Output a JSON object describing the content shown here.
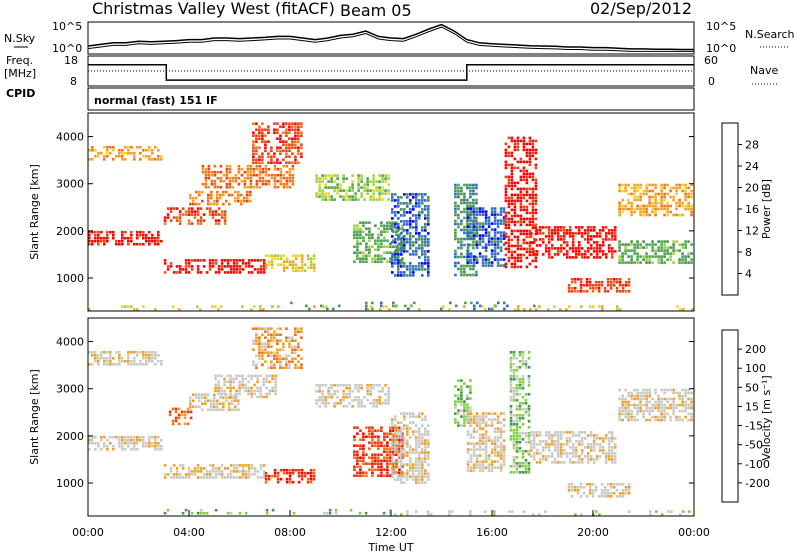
{
  "header": {
    "station": "Christmas Valley West (fitACF)",
    "beam": "Beam 05",
    "date": "02/Sep/2012"
  },
  "left_labels": {
    "nsky": "N.Sky",
    "freq": "Freq.",
    "freq_unit": "[MHz]",
    "cpid": "CPID"
  },
  "right_labels": {
    "nsearch": "N.Search",
    "nave": "Nave"
  },
  "cpid_text": "normal (fast) 151 IF",
  "colors": {
    "power": [
      "#0000ff",
      "#2a6ad0",
      "#4d8e55",
      "#47a84a",
      "#9fd23c",
      "#f0d225",
      "#f5a020",
      "#f07418",
      "#e84414",
      "#ff0000"
    ],
    "velocity": [
      "#ff0000",
      "#e8340e",
      "#f06d14",
      "#f0a020",
      "#c8c8c4",
      "#c8c8c4",
      "#7fcf3c",
      "#3e9c46",
      "#2a6ad0",
      "#1e3ea0"
    ],
    "ground": "#8a8a8a"
  },
  "chart_data": [
    {
      "type": "line",
      "name": "noise-panel",
      "ylabel_left": "N.Sky",
      "ylabel_right": "N.Search",
      "yticks_left": [
        "10^5",
        "10^0"
      ],
      "yticks_right": [
        "10^5",
        "10^0"
      ],
      "x_hours": [
        0,
        0.5,
        1,
        1.5,
        2,
        2.5,
        3,
        3.5,
        4,
        4.5,
        5,
        5.5,
        6,
        6.5,
        7,
        7.5,
        8,
        8.5,
        9,
        9.5,
        10,
        10.5,
        11,
        11.5,
        12,
        12.5,
        13,
        13.5,
        14,
        14.5,
        15,
        15.5,
        16,
        16.5,
        17,
        17.5,
        18,
        18.5,
        19,
        19.5,
        20,
        20.5,
        21,
        21.5,
        22,
        22.5,
        23,
        23.5,
        24
      ],
      "y_frac": [
        0.25,
        0.3,
        0.35,
        0.35,
        0.4,
        0.38,
        0.4,
        0.42,
        0.45,
        0.45,
        0.5,
        0.5,
        0.48,
        0.5,
        0.52,
        0.55,
        0.55,
        0.5,
        0.45,
        0.5,
        0.58,
        0.62,
        0.72,
        0.55,
        0.5,
        0.48,
        0.62,
        0.78,
        0.92,
        0.72,
        0.45,
        0.35,
        0.32,
        0.3,
        0.28,
        0.26,
        0.25,
        0.24,
        0.22,
        0.22,
        0.2,
        0.2,
        0.18,
        0.16,
        0.16,
        0.15,
        0.15,
        0.14,
        0.14
      ]
    },
    {
      "type": "line",
      "name": "frequency-panel",
      "ylabel_left": "Freq. [MHz]",
      "ylabel_right": "Nave",
      "yticks_left": [
        "18",
        "8"
      ],
      "yticks_right": [
        "60",
        "0"
      ],
      "segments_mhz": [
        {
          "x0": 0,
          "x1": 3.1,
          "y": 15.6
        },
        {
          "x0": 3.1,
          "x1": 15.0,
          "y": 9.2
        },
        {
          "x0": 15.0,
          "x1": 24,
          "y": 15.6
        }
      ],
      "nave_level": 30
    },
    {
      "type": "heatmap",
      "name": "power",
      "ylabel": "Slant Range [km]",
      "colorbar_label": "Power [dB]",
      "colorbar_ticks": [
        "28",
        "24",
        "20",
        "16",
        "12",
        "8",
        "4"
      ],
      "yticks": [
        "4000",
        "3000",
        "2000",
        "1000"
      ],
      "ylim": [
        300,
        4500
      ],
      "xlim": [
        0,
        24
      ],
      "bands": [
        {
          "x0": 0.0,
          "x1": 3.0,
          "r0": 1700,
          "r1": 2000,
          "level": 9
        },
        {
          "x0": 3.0,
          "x1": 7.0,
          "r0": 1100,
          "r1": 1400,
          "level": 9
        },
        {
          "x0": 3.0,
          "x1": 5.5,
          "r0": 2100,
          "r1": 2500,
          "level": 8
        },
        {
          "x0": 4.0,
          "x1": 6.5,
          "r0": 2550,
          "r1": 2850,
          "level": 7
        },
        {
          "x0": 0.0,
          "x1": 3.0,
          "r0": 3500,
          "r1": 3800,
          "level": 6
        },
        {
          "x0": 4.5,
          "x1": 8.2,
          "r0": 2900,
          "r1": 3400,
          "level": 7
        },
        {
          "x0": 6.5,
          "x1": 8.5,
          "r0": 3400,
          "r1": 4300,
          "level": 8
        },
        {
          "x0": 7.0,
          "x1": 9.0,
          "r0": 1100,
          "r1": 1500,
          "level": 5
        },
        {
          "x0": 9.0,
          "x1": 12.0,
          "r0": 2600,
          "r1": 3200,
          "level": 4
        },
        {
          "x0": 10.5,
          "x1": 12.5,
          "r0": 1300,
          "r1": 2200,
          "level": 3
        },
        {
          "x0": 12.0,
          "x1": 13.5,
          "r0": 1000,
          "r1": 2800,
          "level": 1
        },
        {
          "x0": 14.5,
          "x1": 15.5,
          "r0": 1000,
          "r1": 3000,
          "level": 2
        },
        {
          "x0": 15.0,
          "x1": 16.5,
          "r0": 1200,
          "r1": 2500,
          "level": 1
        },
        {
          "x0": 16.5,
          "x1": 17.8,
          "r0": 1200,
          "r1": 4000,
          "level": 9
        },
        {
          "x0": 17.5,
          "x1": 21.0,
          "r0": 1400,
          "r1": 2100,
          "level": 9
        },
        {
          "x0": 21.0,
          "x1": 24.0,
          "r0": 2300,
          "r1": 3000,
          "level": 6
        },
        {
          "x0": 21.0,
          "x1": 24.0,
          "r0": 1300,
          "r1": 1800,
          "level": 3
        },
        {
          "x0": 19.0,
          "x1": 21.5,
          "r0": 700,
          "r1": 1000,
          "level": 8
        }
      ],
      "ground_bands": [
        {
          "x0": 8.0,
          "x1": 18.0,
          "r0": 300,
          "r1": 500,
          "level": 2
        },
        {
          "x0": 0.0,
          "x1": 24.0,
          "r0": 300,
          "r1": 420,
          "level": 5
        }
      ]
    },
    {
      "type": "heatmap",
      "name": "velocity",
      "ylabel": "Slant Range [km]",
      "colorbar_label": "Velocity [m s⁻¹]",
      "colorbar_ticks": [
        "200",
        "100",
        "50",
        "15",
        "-15",
        "-50",
        "-100",
        "-200"
      ],
      "yticks": [
        "4000",
        "3000",
        "2000",
        "1000"
      ],
      "ylim": [
        300,
        4500
      ],
      "xlim": [
        0,
        24
      ],
      "xlabel": "Time UT",
      "xticks": [
        "00:00",
        "04:00",
        "08:00",
        "12:00",
        "16:00",
        "20:00",
        "00:00"
      ],
      "bands": [
        {
          "x0": 0.0,
          "x1": 3.0,
          "r0": 1700,
          "r1": 2000,
          "level": 4
        },
        {
          "x0": 3.0,
          "x1": 7.0,
          "r0": 1100,
          "r1": 1400,
          "level": 4
        },
        {
          "x0": 3.2,
          "x1": 4.2,
          "r0": 2200,
          "r1": 2600,
          "level": 2
        },
        {
          "x0": 4.0,
          "x1": 6.0,
          "r0": 2500,
          "r1": 2900,
          "level": 4
        },
        {
          "x0": 0.0,
          "x1": 3.0,
          "r0": 3500,
          "r1": 3800,
          "level": 4
        },
        {
          "x0": 5.0,
          "x1": 7.5,
          "r0": 2800,
          "r1": 3300,
          "level": 4
        },
        {
          "x0": 6.5,
          "x1": 8.5,
          "r0": 3400,
          "r1": 4300,
          "level": 3
        },
        {
          "x0": 7.0,
          "x1": 9.0,
          "r0": 1000,
          "r1": 1300,
          "level": 1
        },
        {
          "x0": 9.0,
          "x1": 12.0,
          "r0": 2600,
          "r1": 3100,
          "level": 4
        },
        {
          "x0": 10.5,
          "x1": 12.5,
          "r0": 1100,
          "r1": 2200,
          "level": 1
        },
        {
          "x0": 12.0,
          "x1": 13.5,
          "r0": 1000,
          "r1": 2500,
          "level": 4
        },
        {
          "x0": 14.5,
          "x1": 15.2,
          "r0": 2200,
          "r1": 3200,
          "level": 6
        },
        {
          "x0": 15.0,
          "x1": 16.5,
          "r0": 1200,
          "r1": 2500,
          "level": 4
        },
        {
          "x0": 16.7,
          "x1": 17.5,
          "r0": 1200,
          "r1": 3800,
          "level": 6
        },
        {
          "x0": 17.5,
          "x1": 21.0,
          "r0": 1400,
          "r1": 2100,
          "level": 4
        },
        {
          "x0": 21.0,
          "x1": 24.0,
          "r0": 2300,
          "r1": 3000,
          "level": 4
        },
        {
          "x0": 19.0,
          "x1": 21.5,
          "r0": 700,
          "r1": 1000,
          "level": 4
        }
      ],
      "ground_bands": [
        {
          "x0": 3.0,
          "x1": 12.0,
          "r0": 300,
          "r1": 450,
          "level": 6
        },
        {
          "x0": 12.0,
          "x1": 24.0,
          "r0": 300,
          "r1": 420,
          "level": 5
        }
      ]
    }
  ]
}
